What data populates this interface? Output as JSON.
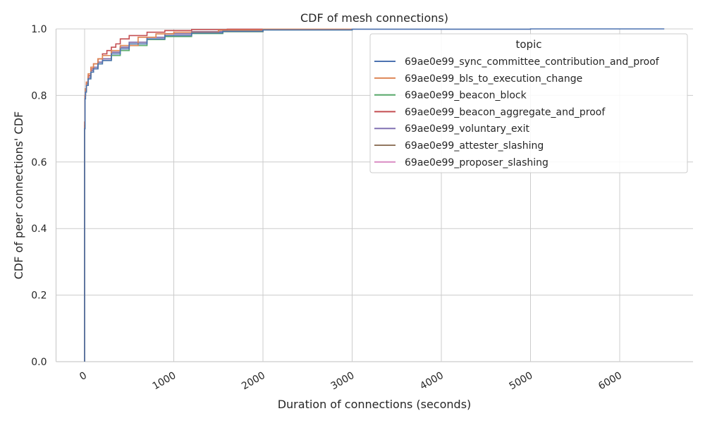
{
  "chart_data": {
    "type": "line",
    "title": "CDF of mesh connections)",
    "xlabel": "Duration of connections (seconds)",
    "ylabel": "CDF of peer connections' CDF",
    "xlim": [
      -100,
      6800
    ],
    "ylim": [
      0,
      1.0
    ],
    "x_ticks": [
      0,
      1000,
      2000,
      3000,
      4000,
      5000,
      6000
    ],
    "x_tick_labels": [
      "0",
      "1000",
      "2000",
      "3000",
      "4000",
      "5000",
      "6000"
    ],
    "y_ticks": [
      0.0,
      0.2,
      0.4,
      0.6,
      0.8,
      1.0
    ],
    "y_tick_labels": [
      "0.0",
      "0.2",
      "0.4",
      "0.6",
      "0.8",
      "1.0"
    ],
    "grid": true,
    "legend": {
      "title": "topic",
      "placement": "top-right"
    },
    "series": [
      {
        "name": "69ae0e99_sync_committee_contribution_and_proof",
        "color": "#4c72b0",
        "x": [
          0,
          0,
          5,
          10,
          20,
          40,
          70,
          100,
          150,
          200,
          300,
          400,
          500,
          700,
          900,
          1200,
          1550,
          2000,
          3000,
          5000,
          6500
        ],
        "y": [
          0.0,
          0.7,
          0.79,
          0.81,
          0.83,
          0.85,
          0.87,
          0.88,
          0.895,
          0.905,
          0.925,
          0.94,
          0.955,
          0.97,
          0.98,
          0.988,
          0.993,
          0.997,
          0.999,
          1.0,
          1.0
        ]
      },
      {
        "name": "69ae0e99_bls_to_execution_change",
        "color": "#dd8452",
        "x": [
          0,
          0,
          5,
          10,
          20,
          40,
          70,
          100,
          150,
          200,
          300,
          400,
          600,
          800,
          1000,
          1500,
          2000,
          3000
        ],
        "y": [
          0.0,
          0.72,
          0.8,
          0.82,
          0.84,
          0.865,
          0.885,
          0.895,
          0.91,
          0.92,
          0.935,
          0.95,
          0.975,
          0.985,
          0.99,
          0.996,
          0.999,
          1.0
        ]
      },
      {
        "name": "69ae0e99_beacon_block",
        "color": "#55a868",
        "x": [
          0,
          0,
          5,
          10,
          20,
          40,
          70,
          100,
          150,
          200,
          300,
          400,
          500,
          700,
          900,
          1200,
          1550,
          2000,
          3000
        ],
        "y": [
          0.0,
          0.7,
          0.79,
          0.81,
          0.83,
          0.85,
          0.87,
          0.88,
          0.895,
          0.905,
          0.92,
          0.935,
          0.95,
          0.968,
          0.977,
          0.986,
          0.992,
          0.997,
          1.0
        ]
      },
      {
        "name": "69ae0e99_beacon_aggregate_and_proof",
        "color": "#c44e52",
        "x": [
          0,
          0,
          5,
          10,
          20,
          40,
          70,
          100,
          150,
          200,
          250,
          300,
          350,
          400,
          500,
          700,
          900,
          1200,
          1600,
          2000
        ],
        "y": [
          0.0,
          0.72,
          0.8,
          0.82,
          0.84,
          0.86,
          0.88,
          0.895,
          0.91,
          0.925,
          0.935,
          0.945,
          0.955,
          0.97,
          0.98,
          0.99,
          0.995,
          0.998,
          0.999,
          1.0
        ]
      },
      {
        "name": "69ae0e99_voluntary_exit",
        "color": "#8172b3",
        "x": [
          0,
          0,
          5,
          10,
          20,
          40,
          70,
          100,
          150,
          200,
          300,
          400,
          500,
          700,
          900,
          1200,
          2000
        ],
        "y": [
          0.0,
          0.71,
          0.8,
          0.815,
          0.835,
          0.855,
          0.875,
          0.885,
          0.9,
          0.91,
          0.93,
          0.945,
          0.96,
          0.975,
          0.985,
          0.992,
          1.0
        ]
      },
      {
        "name": "69ae0e99_attester_slashing",
        "color": "#937860",
        "x": [
          0,
          0,
          5,
          10,
          20,
          40,
          70,
          100,
          150,
          200,
          300,
          400,
          500,
          700,
          900,
          1200,
          2000
        ],
        "y": [
          0.0,
          0.71,
          0.8,
          0.815,
          0.835,
          0.855,
          0.875,
          0.885,
          0.9,
          0.91,
          0.93,
          0.945,
          0.96,
          0.975,
          0.985,
          0.992,
          1.0
        ]
      },
      {
        "name": "69ae0e99_proposer_slashing",
        "color": "#da8bc3",
        "x": [
          0,
          0,
          5,
          10,
          20,
          40,
          70,
          100,
          150,
          200,
          300,
          400,
          500,
          700,
          900,
          1200,
          2000
        ],
        "y": [
          0.0,
          0.71,
          0.8,
          0.815,
          0.835,
          0.855,
          0.875,
          0.885,
          0.9,
          0.91,
          0.93,
          0.945,
          0.96,
          0.975,
          0.985,
          0.992,
          1.0
        ]
      }
    ]
  }
}
